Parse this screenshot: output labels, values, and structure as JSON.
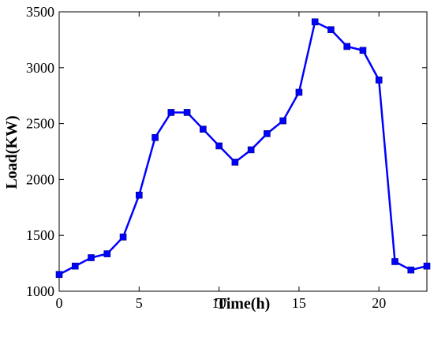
{
  "chart_data": {
    "type": "line",
    "xlabel": "Time(h)",
    "ylabel": "Load(KW)",
    "xlim": [
      0,
      23
    ],
    "ylim": [
      1000,
      3500
    ],
    "x_ticks": [
      0,
      5,
      10,
      15,
      20
    ],
    "y_ticks": [
      1000,
      1500,
      2000,
      2500,
      3000,
      3500
    ],
    "grid": false,
    "line_color": "#0000ff",
    "marker": "square",
    "series": [
      {
        "x": [
          0,
          1,
          2,
          3,
          4,
          5,
          6,
          7,
          8,
          9,
          10,
          11,
          12,
          13,
          14,
          15,
          16,
          17,
          18,
          19,
          20,
          21,
          22,
          23
        ],
        "values": [
          1150,
          1225,
          1300,
          1335,
          1485,
          1860,
          2375,
          2600,
          2600,
          2450,
          2300,
          2155,
          2265,
          2410,
          2525,
          2780,
          3410,
          3340,
          3190,
          3155,
          2890,
          1265,
          1190,
          1225
        ]
      }
    ]
  }
}
